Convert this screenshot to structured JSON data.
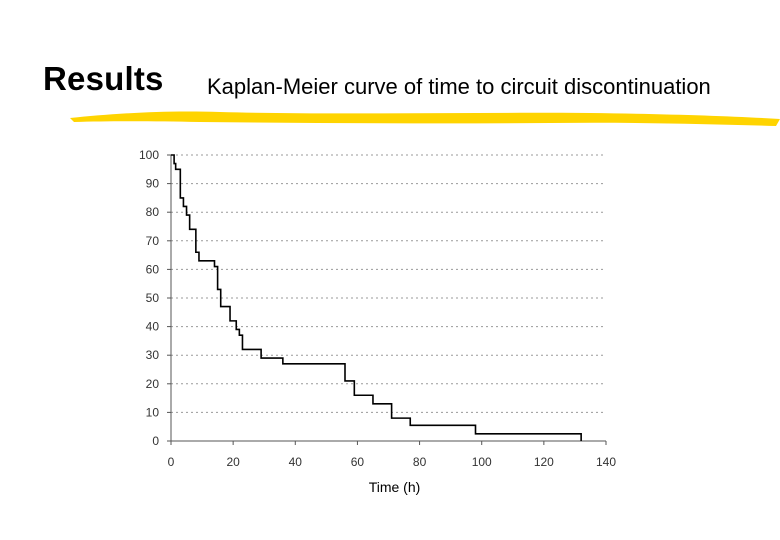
{
  "slide": {
    "heading": "Results",
    "subtitle": "Kaplan-Meier curve of time to circuit discontinuation",
    "accent_color": "#ffd400"
  },
  "chart_data": {
    "type": "line",
    "step": true,
    "title": "",
    "xlabel": "Time (h)",
    "ylabel": "",
    "xlim": [
      0,
      140
    ],
    "ylim": [
      0,
      100
    ],
    "xticks": [
      0,
      20,
      40,
      60,
      80,
      100,
      120,
      140
    ],
    "yticks": [
      0,
      10,
      20,
      30,
      40,
      50,
      60,
      70,
      80,
      90,
      100
    ],
    "grid": "horizontal-dotted",
    "line_color": "#000000",
    "series": [
      {
        "points": [
          [
            0,
            100
          ],
          [
            1,
            97
          ],
          [
            1.5,
            95
          ],
          [
            3,
            85
          ],
          [
            4,
            82
          ],
          [
            5,
            79
          ],
          [
            6,
            74
          ],
          [
            8,
            66
          ],
          [
            9,
            63
          ],
          [
            14,
            61
          ],
          [
            15,
            53
          ],
          [
            16,
            47
          ],
          [
            19,
            42
          ],
          [
            21,
            39
          ],
          [
            22,
            37
          ],
          [
            23,
            32
          ],
          [
            29,
            29
          ],
          [
            36,
            27
          ],
          [
            56,
            21
          ],
          [
            59,
            16
          ],
          [
            65,
            13
          ],
          [
            71,
            8
          ],
          [
            77,
            5.5
          ],
          [
            98,
            2.5
          ],
          [
            132,
            0
          ]
        ]
      }
    ]
  }
}
